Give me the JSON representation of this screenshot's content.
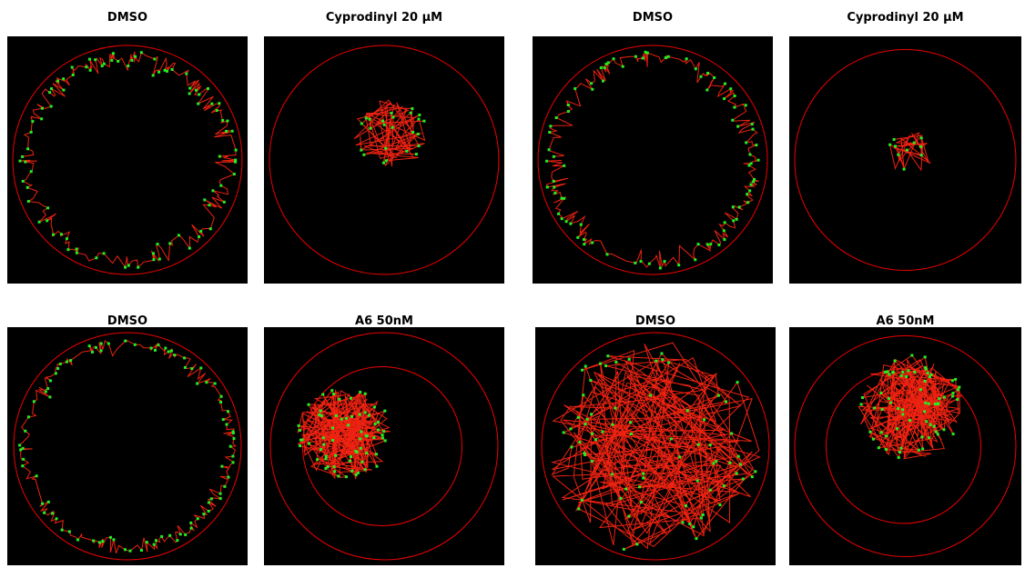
{
  "panels": [
    {
      "title": "DMSO"
    },
    {
      "title": "Cyprodinyl 20 µM"
    },
    {
      "title": "DMSO"
    },
    {
      "title": "Cyprodinyl 20 µM"
    },
    {
      "title": "DMSO"
    },
    {
      "title": "A6 50nM"
    },
    {
      "title": "DMSO"
    },
    {
      "title": "A6 50nM"
    }
  ]
}
